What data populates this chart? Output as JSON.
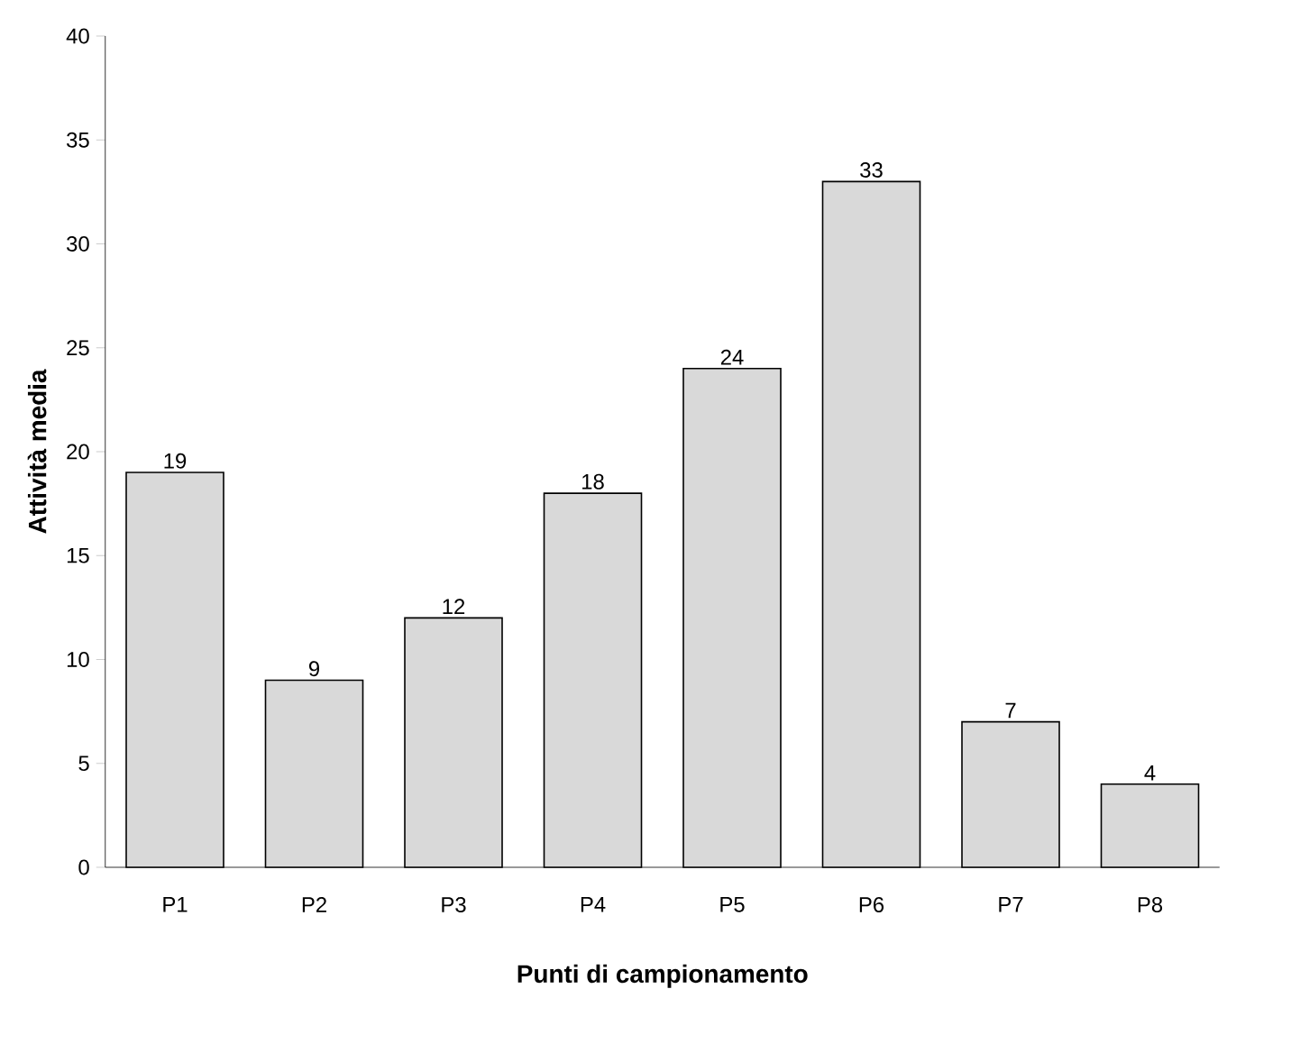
{
  "chart_data": {
    "type": "bar",
    "xlabel": "Punti di campionamento",
    "ylabel": "Attività media",
    "categories": [
      "P1",
      "P2",
      "P3",
      "P4",
      "P5",
      "P6",
      "P7",
      "P8"
    ],
    "values": [
      19,
      9,
      12,
      18,
      24,
      33,
      7,
      4
    ],
    "color": "#d9d9d9",
    "ylim": [
      0,
      40
    ],
    "yticks": [
      0,
      5,
      10,
      15,
      20,
      25,
      30,
      35,
      40
    ],
    "data_labels": true
  }
}
